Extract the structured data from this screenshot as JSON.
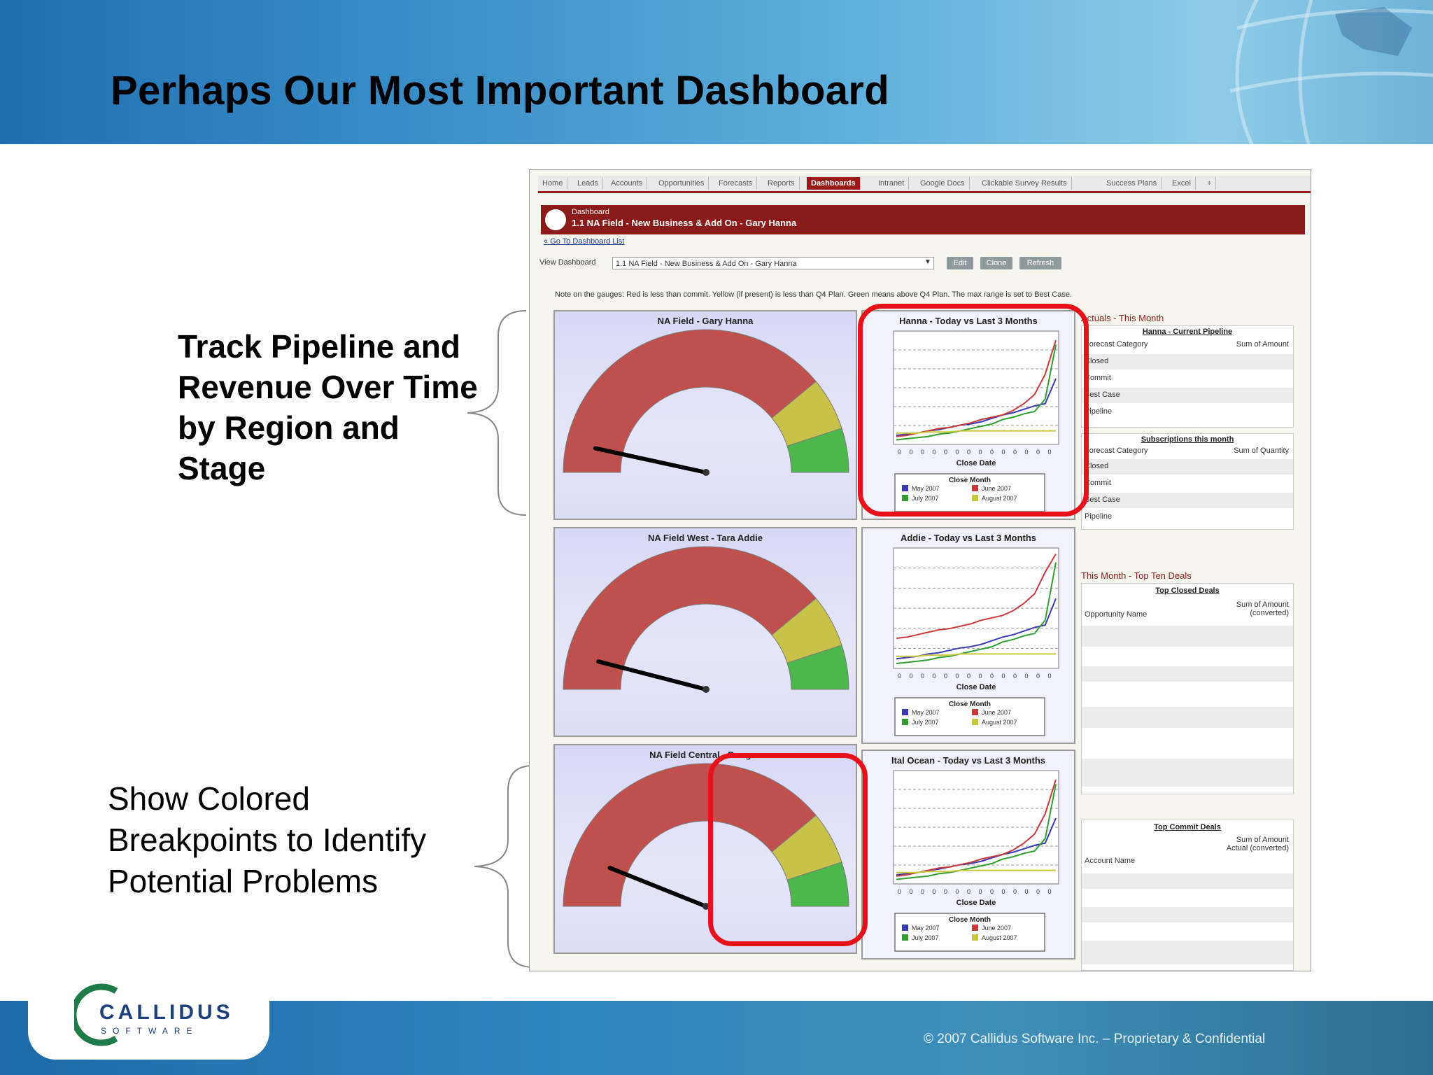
{
  "slide": {
    "title": "Perhaps Our Most Important Dashboard",
    "annotation_top": [
      "Track Pipeline and",
      "Revenue Over Time",
      "by Region and",
      "Stage"
    ],
    "annotation_bottom": [
      "Show Colored",
      "Breakpoints to Identify",
      "Potential Problems"
    ],
    "logo_text": "CALLIDUS",
    "logo_sub": "SOFTWARE",
    "copyright": "© 2007 Callidus Software Inc. – Proprietary & Confidential"
  },
  "dashboard": {
    "tabs": [
      "Home",
      "Leads",
      "Accounts",
      "Opportunities",
      "Forecasts",
      "Reports",
      "Dashboards",
      "Intranet",
      "Google Docs",
      "Clickable Survey Results",
      "Success Plans",
      "Excel",
      "+"
    ],
    "active_tab": "Dashboards",
    "header_label": "Dashboard",
    "header_title": "1.1 NA Field - New Business & Add On - Gary Hanna",
    "go_to_list": "« Go To Dashboard List",
    "view_label": "View Dashboard",
    "view_value": "1.1 NA Field - New Business & Add On - Gary Hanna",
    "buttons": [
      "Edit",
      "Clone",
      "Refresh"
    ],
    "note": "Note on the gauges: Red is less than commit. Yellow (if present) is less than Q4 Plan. Green means above Q4 Plan. The max range is set to Best Case.",
    "gauges": [
      {
        "title": "NA Field - Gary Hanna",
        "needle": 0.12
      },
      {
        "title": "NA Field West - Tara Addie",
        "needle": 0.14
      },
      {
        "title": "NA Field Central - Doug ...",
        "needle": 0.2
      }
    ],
    "charts": [
      {
        "title": "Hanna - Today vs Last 3 Months",
        "xlabel": "Close Date"
      },
      {
        "title": "Addie - Today vs Last 3 Months",
        "xlabel": "Close Date"
      },
      {
        "title": "Ital Ocean - Today vs Last 3 Months",
        "xlabel": "Close Date"
      }
    ],
    "legend": {
      "title": "Close Month",
      "items": [
        {
          "label": "May 2007",
          "color": "#3b3bb8"
        },
        {
          "label": "June 2007",
          "color": "#c83a3a"
        },
        {
          "label": "July 2007",
          "color": "#2fa02f"
        },
        {
          "label": "August 2007",
          "color": "#c8c83a"
        }
      ]
    },
    "side": {
      "actuals_heading": "Actuals - This Month",
      "pipeline_title": "Hanna - Current Pipeline",
      "pipeline_cols": [
        "Forecast Category",
        "Sum of Amount"
      ],
      "pipeline_rows": [
        "Closed",
        "Commit",
        "Best Case",
        "Pipeline"
      ],
      "subs_title": "Subscriptions this month",
      "subs_cols": [
        "Forecast Category",
        "Sum of Quantity"
      ],
      "subs_rows": [
        "Closed",
        "Commit",
        "Best Case",
        "Pipeline"
      ],
      "top_heading": "This Month - Top Ten Deals",
      "closed_title": "Top Closed Deals",
      "closed_cols": [
        "Opportunity Name",
        "Sum of Amount (converted)"
      ],
      "commit_title": "Top Commit Deals",
      "commit_cols": [
        "Account Name",
        "Sum of Amount Actual (converted)"
      ]
    },
    "colors": {
      "red": "#c0504d",
      "yellow": "#c9c24a",
      "green": "#4cb84c",
      "highlight": "#e8101a",
      "brand": "#8b1a1a"
    }
  }
}
